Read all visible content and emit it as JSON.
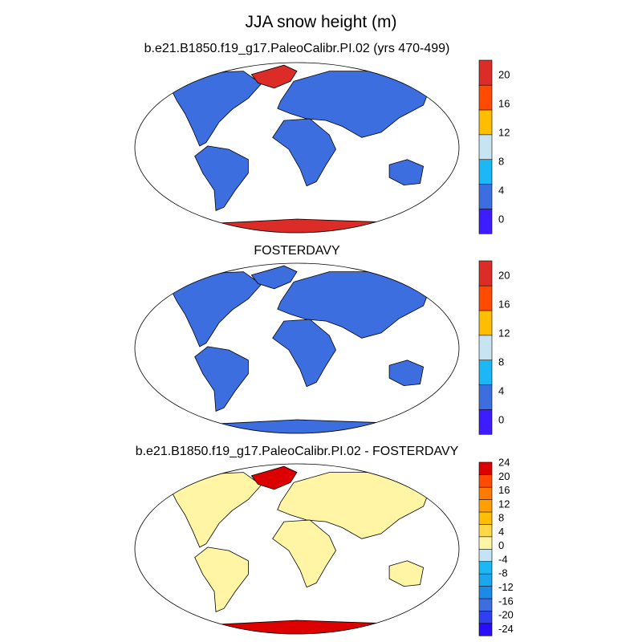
{
  "figure": {
    "title": "JJA snow height (m)"
  },
  "colors": {
    "ocean": "#ffffff",
    "outline": "#000000"
  },
  "chart_data": [
    {
      "type": "heatmap",
      "title": "b.e21.B1850.f19_g17.PaleoCalibr.PI.02 (yrs 470-499)",
      "variable": "snow height",
      "units": "m",
      "season": "JJA",
      "projection": "robinson",
      "colorbar": {
        "levels": [
          -2,
          0,
          2,
          4,
          6,
          8,
          10,
          12,
          14,
          16,
          18,
          20,
          22
        ],
        "tick_values": [
          0,
          4,
          8,
          12,
          16,
          20
        ],
        "tick_labels": [
          "0",
          "4",
          "8",
          "12",
          "16",
          "20"
        ],
        "colors": [
          "#3d1dff",
          "#3d6ee0",
          "#1cb8f5",
          "#c7e4f3",
          "#ffbe00",
          "#ff4a00",
          "#dc2c27"
        ]
      },
      "regions": [
        {
          "name": "Land (non-ice)",
          "value": 2,
          "color": "#3d6ee0"
        },
        {
          "name": "Greenland",
          "value": 24,
          "color": "#dc2c27"
        },
        {
          "name": "Antarctica",
          "value": 24,
          "color": "#dc2c27"
        }
      ]
    },
    {
      "type": "heatmap",
      "title": "FOSTERDAVY",
      "variable": "snow height",
      "units": "m",
      "season": "JJA",
      "projection": "robinson",
      "colorbar": {
        "levels": [
          -2,
          0,
          2,
          4,
          6,
          8,
          10,
          12,
          14,
          16,
          18,
          20,
          22
        ],
        "tick_values": [
          0,
          4,
          8,
          12,
          16,
          20
        ],
        "tick_labels": [
          "0",
          "4",
          "8",
          "12",
          "16",
          "20"
        ],
        "colors": [
          "#3d1dff",
          "#3d6ee0",
          "#1cb8f5",
          "#c7e4f3",
          "#ffbe00",
          "#ff4a00",
          "#dc2c27"
        ]
      },
      "regions": [
        {
          "name": "Land (non-ice)",
          "value": 2,
          "color": "#3d6ee0"
        },
        {
          "name": "Greenland",
          "value": 2,
          "color": "#3d6ee0"
        },
        {
          "name": "Antarctica",
          "value": 2,
          "color": "#3d6ee0"
        }
      ]
    },
    {
      "type": "heatmap",
      "title": "b.e21.B1850.f19_g17.PaleoCalibr.PI.02 - FOSTERDAVY",
      "variable": "snow height difference",
      "units": "m",
      "season": "JJA",
      "projection": "robinson",
      "colorbar": {
        "levels": [
          -26,
          -24,
          -22,
          -20,
          -18,
          -16,
          -14,
          -12,
          -10,
          -8,
          -6,
          -4,
          -2,
          0,
          2,
          4,
          6,
          8,
          10,
          12,
          14,
          16,
          18,
          20,
          22,
          24
        ],
        "tick_values": [
          -24,
          -20,
          -16,
          -12,
          -8,
          -4,
          0,
          4,
          8,
          12,
          16,
          20,
          24
        ],
        "tick_labels": [
          "-24",
          "-20",
          "-16",
          "-12",
          "-8",
          "-4",
          "0",
          "4",
          "8",
          "12",
          "16",
          "20",
          "24"
        ],
        "colors": [
          "#2a0dff",
          "#3040f0",
          "#3d6ee0",
          "#1d8be6",
          "#1ca6ef",
          "#1cb8f5",
          "#c4e3f5",
          "#fff5a5",
          "#ffd848",
          "#ffbe00",
          "#ffa000",
          "#ff7a00",
          "#ff4a00",
          "#dc0000"
        ]
      },
      "regions": [
        {
          "name": "Land (non-ice)",
          "value": 1,
          "color": "#fff5a5"
        },
        {
          "name": "Greenland",
          "value": 22,
          "color": "#dc0000"
        },
        {
          "name": "Antarctica",
          "value": 22,
          "color": "#dc0000"
        }
      ]
    }
  ]
}
